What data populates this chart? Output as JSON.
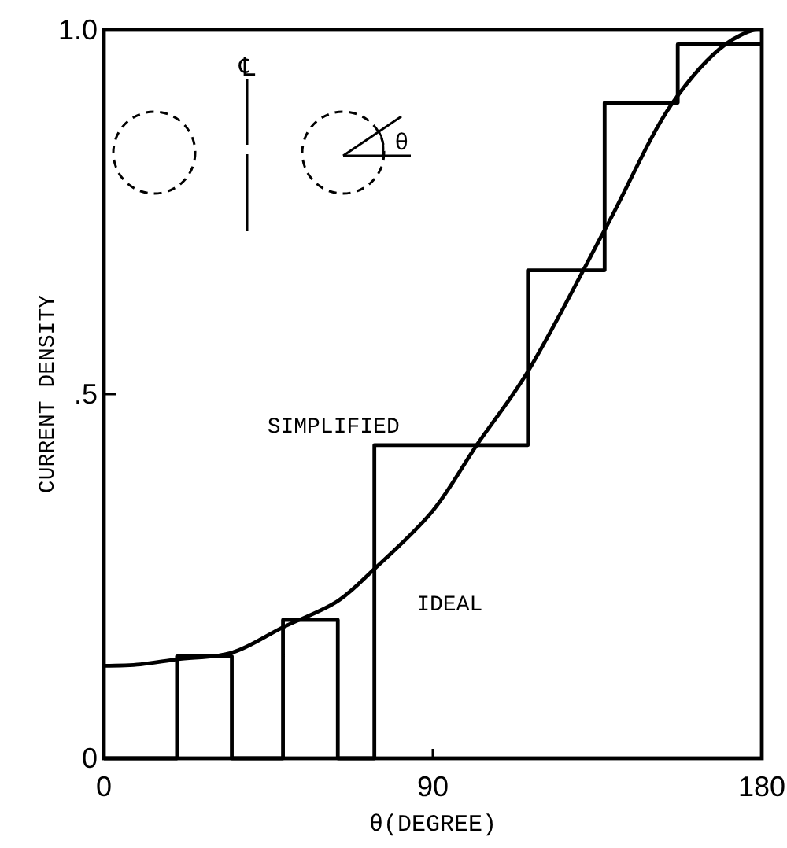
{
  "chart_data": {
    "type": "line",
    "xlabel": "θ(DEGREE)",
    "ylabel": "CURRENT DENSITY",
    "xlim": [
      0,
      180
    ],
    "ylim": [
      0,
      1
    ],
    "xticks": [
      0,
      90,
      180
    ],
    "yticks": [
      0,
      {
        "value": 0.5,
        "label": ".5"
      },
      {
        "value": 1,
        "label": "1.0"
      }
    ],
    "grid": false,
    "marker": "none",
    "line_style": "solid",
    "annotations": [
      "℄",
      "θ"
    ],
    "series": [
      {
        "name": "SIMPLIFIED",
        "type": "step",
        "color": "#000000",
        "x": [
          0,
          20,
          35,
          49,
          64,
          74,
          116,
          137,
          157,
          180
        ],
        "values": [
          0,
          0.14,
          0,
          0.19,
          0,
          0.43,
          0.67,
          0.9,
          0.98,
          0.98
        ]
      },
      {
        "name": "IDEAL",
        "color": "#000000",
        "x": [
          0,
          10,
          20,
          35,
          49,
          64,
          74,
          90,
          102,
          115.5,
          137.5,
          155.6,
          170,
          178,
          180
        ],
        "values": [
          0.127,
          0.129,
          0.136,
          0.145,
          0.18,
          0.216,
          0.26,
          0.34,
          0.43,
          0.527,
          0.73,
          0.9,
          0.98,
          1.0,
          1.0
        ]
      }
    ]
  }
}
